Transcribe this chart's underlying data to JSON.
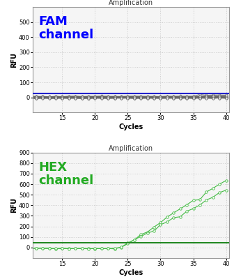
{
  "title": "Amplification",
  "xlabel": "Cycles",
  "ylabel": "RFU",
  "fam_label": "FAM\nchannel",
  "fam_label_color": "#0000ff",
  "fam_ylim": [
    -100,
    600
  ],
  "fam_yticks": [
    0,
    100,
    200,
    300,
    400,
    500
  ],
  "fam_threshold": 28,
  "fam_threshold_color": "#2222cc",
  "fam_line_color": "#666666",
  "fam_marker_color": "#666666",
  "hex_label": "HEX\nchannel",
  "hex_label_color": "#22aa22",
  "hex_ylim": [
    -100,
    900
  ],
  "hex_yticks": [
    0,
    100,
    200,
    300,
    400,
    500,
    600,
    700,
    800,
    900
  ],
  "hex_threshold": 45,
  "hex_threshold_color": "#228822",
  "hex_line_color": "#44bb44",
  "hex_marker_color": "#44bb44",
  "xlim": [
    10.5,
    40.5
  ],
  "xticks": [
    15,
    20,
    25,
    30,
    35,
    40
  ],
  "fam_n_lines": 20,
  "hex_n_lines": 2,
  "grid_color": "#cccccc",
  "grid_linestyle": ":",
  "grid_linewidth": 0.7,
  "bg_color": "#f5f5f5"
}
